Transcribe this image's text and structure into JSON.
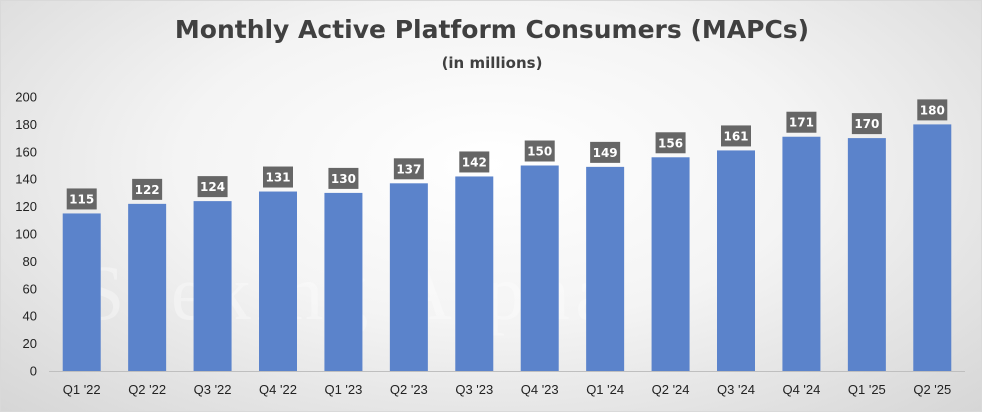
{
  "title": "Monthly Active Platform Consumers (MAPCs)",
  "subtitle": "(in millions)",
  "watermark": "Seeking Alpha",
  "colors": {
    "bar": "#5B83CB",
    "label_bg": "#666666",
    "label_text": "#ffffff"
  },
  "chart_data": {
    "type": "bar",
    "title": "Monthly Active Platform Consumers (MAPCs)",
    "subtitle": "(in millions)",
    "xlabel": "",
    "ylabel": "",
    "ylim": [
      0,
      200
    ],
    "yticks": [
      0,
      20,
      40,
      60,
      80,
      100,
      120,
      140,
      160,
      180,
      200
    ],
    "grid": false,
    "legend": "none",
    "categories": [
      "Q1 '22",
      "Q2 '22",
      "Q3 '22",
      "Q4 '22",
      "Q1 '23",
      "Q2 '23",
      "Q3 '23",
      "Q4 '23",
      "Q1 '24",
      "Q2 '24",
      "Q3 '24",
      "Q4 '24",
      "Q1 '25",
      "Q2 '25"
    ],
    "values": [
      115,
      122,
      124,
      131,
      130,
      137,
      142,
      150,
      149,
      156,
      161,
      171,
      170,
      180
    ]
  }
}
